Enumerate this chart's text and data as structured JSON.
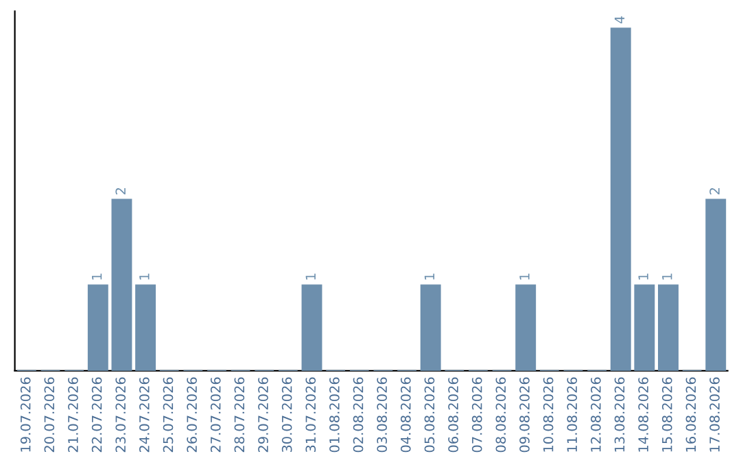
{
  "chart_data": {
    "type": "bar",
    "categories": [
      "19.07.2026",
      "20.07.2026",
      "21.07.2026",
      "22.07.2026",
      "23.07.2026",
      "24.07.2026",
      "25.07.2026",
      "26.07.2026",
      "27.07.2026",
      "28.07.2026",
      "29.07.2026",
      "30.07.2026",
      "31.07.2026",
      "01.08.2026",
      "02.08.2026",
      "03.08.2026",
      "04.08.2026",
      "05.08.2026",
      "06.08.2026",
      "07.08.2026",
      "08.08.2026",
      "09.08.2026",
      "10.08.2026",
      "11.08.2026",
      "12.08.2026",
      "13.08.2026",
      "14.08.2026",
      "15.08.2026",
      "16.08.2026",
      "17.08.2026"
    ],
    "values": [
      0,
      0,
      0,
      1,
      2,
      1,
      0,
      0,
      0,
      0,
      0,
      0,
      1,
      0,
      0,
      0,
      0,
      1,
      0,
      0,
      0,
      1,
      0,
      0,
      0,
      4,
      1,
      1,
      0,
      2
    ],
    "value_labels": [
      null,
      null,
      null,
      "1",
      "2",
      "1",
      null,
      null,
      null,
      null,
      null,
      null,
      "1",
      null,
      null,
      null,
      null,
      "1",
      null,
      null,
      null,
      "1",
      null,
      null,
      null,
      "4",
      "1",
      "1",
      null,
      "2"
    ],
    "color": "#6d8fad",
    "ylim": [
      0,
      4.2
    ],
    "tick_labels": "x",
    "grid": false,
    "legend": false
  }
}
